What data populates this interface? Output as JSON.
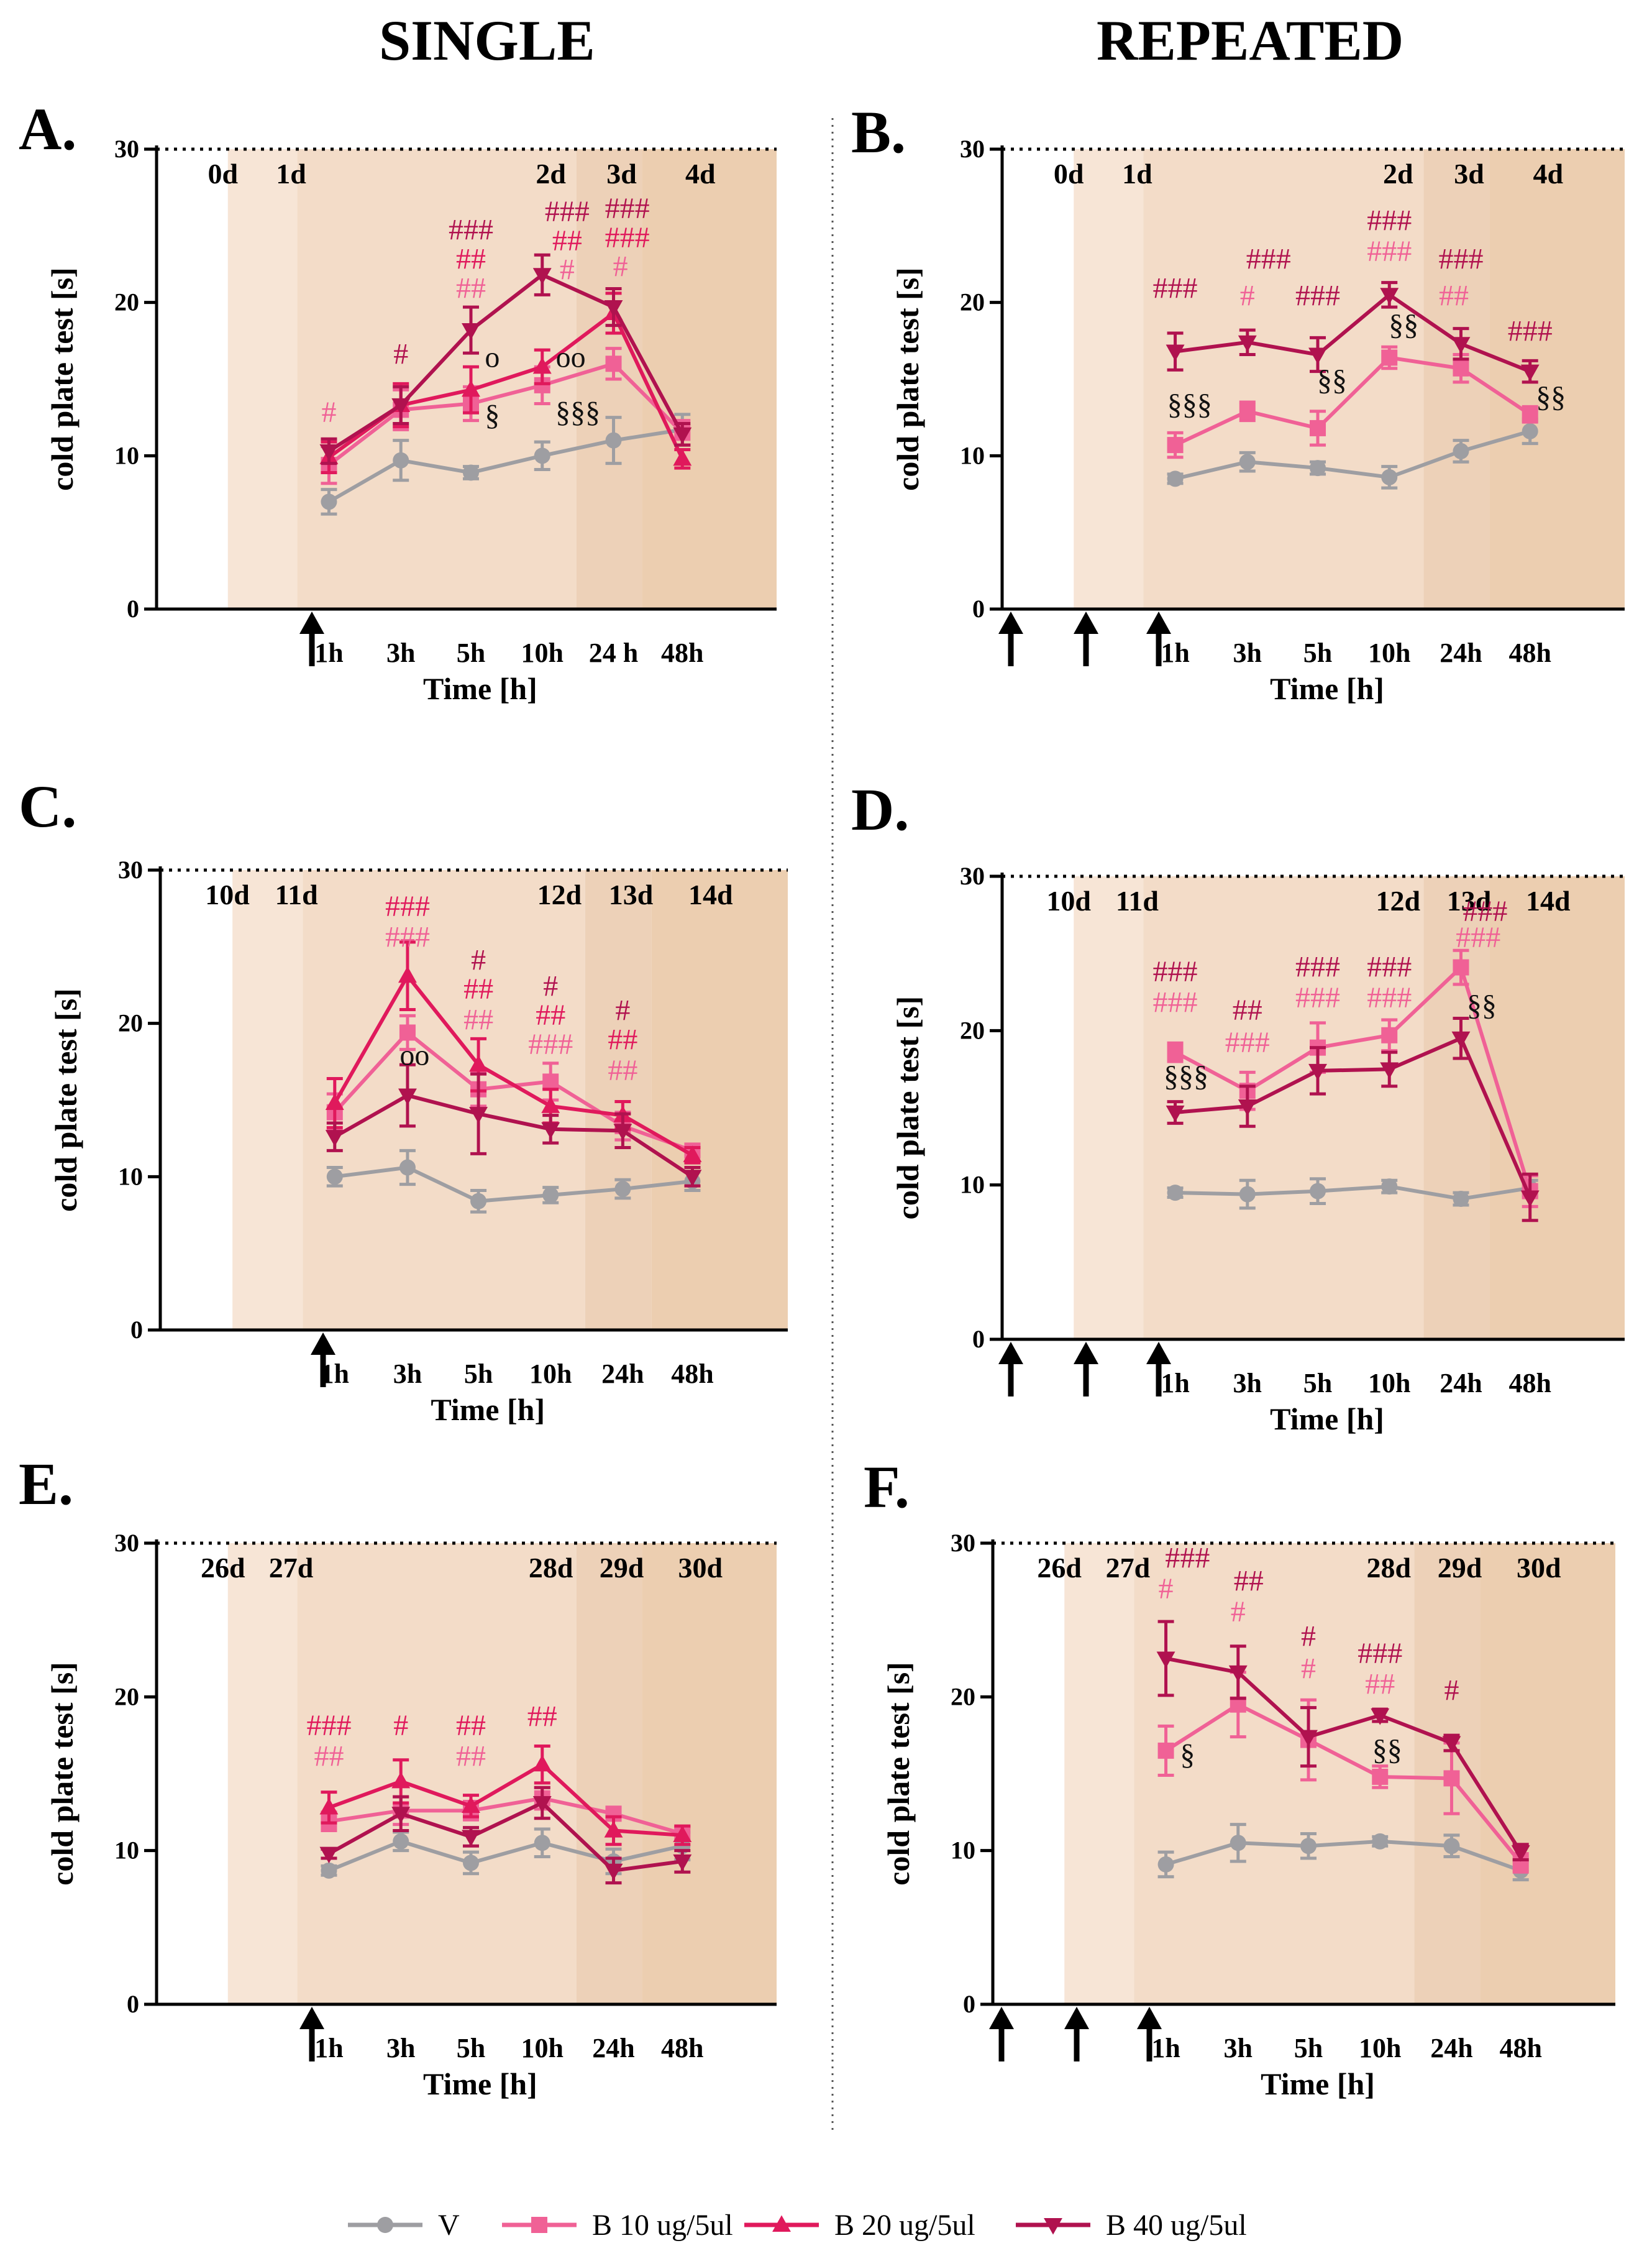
{
  "column_titles": {
    "left": "SINGLE",
    "right": "REPEATED"
  },
  "series_styles": [
    {
      "name": "V",
      "color": "#9e9ea2",
      "marker": "circle"
    },
    {
      "name": "B 10 ug/5ul",
      "color": "#f06196",
      "marker": "square"
    },
    {
      "name": "B 20 ug/5ul",
      "color": "#e0195c",
      "marker": "triangle-up"
    },
    {
      "name": "B 40 ug/5ul",
      "color": "#b0124f",
      "marker": "triangle-down"
    }
  ],
  "colors": {
    "label_b10": "#f06196",
    "label_b20": "#e0195c",
    "label_b40": "#b0124f",
    "label_sig": "#111111"
  },
  "legend": [
    "V",
    "B 10 ug/5ul",
    "B 20 ug/5ul",
    "B 40 ug/5ul"
  ],
  "chart_data": [
    {
      "panel": "A.",
      "type": "line",
      "protocol": "single",
      "ylabel": "cold plate test  [s]",
      "xlabel": "Time [h]",
      "ylim": [
        0,
        30
      ],
      "yticks": [
        0,
        10,
        20,
        30
      ],
      "categories": [
        "1h",
        "3h",
        "5h",
        "10h",
        "24 h",
        "48h"
      ],
      "day_labels": [
        "0d",
        "1d",
        "2d",
        "3d",
        "4d"
      ],
      "injection_arrows": 1,
      "series": [
        {
          "name": "V",
          "values": [
            7,
            9.7,
            8.9,
            10,
            11,
            11.7
          ],
          "err": [
            0.8,
            1.3,
            0.4,
            0.9,
            1.5,
            1
          ]
        },
        {
          "name": "B 10 ug/5ul",
          "values": [
            9.4,
            13,
            13.4,
            14.6,
            16,
            11.5
          ],
          "err": [
            1.2,
            1.3,
            1.1,
            1.2,
            1,
            0.8
          ]
        },
        {
          "name": "B 20 ug/5ul",
          "values": [
            9.9,
            13.3,
            14.3,
            15.8,
            19.3,
            9.8
          ],
          "err": [
            1,
            1.4,
            1.5,
            1.1,
            1.3,
            0.6
          ]
        },
        {
          "name": "B 40 ug/5ul",
          "values": [
            10.3,
            13.3,
            18.2,
            21.8,
            19.7,
            11.4
          ],
          "err": [
            0.8,
            1.2,
            1.5,
            1.3,
            1.2,
            0.7
          ]
        }
      ],
      "annotations": [
        {
          "cat": 0,
          "y": 12.2,
          "text": "#",
          "color": "b10"
        },
        {
          "cat": 1,
          "y": 16,
          "text": "#",
          "color": "b40"
        },
        {
          "cat": 2,
          "y": 20.3,
          "text": "##",
          "color": "b10"
        },
        {
          "cat": 2,
          "y": 22.2,
          "text": "##",
          "color": "b20"
        },
        {
          "cat": 2,
          "y": 24.1,
          "text": "###",
          "color": "b40"
        },
        {
          "cat": 2.3,
          "y": 15.8,
          "text": "o",
          "color": "sig"
        },
        {
          "cat": 2.3,
          "y": 12,
          "text": "§",
          "color": "sig"
        },
        {
          "cat": 3.35,
          "y": 21.5,
          "text": "#",
          "color": "b10"
        },
        {
          "cat": 3.35,
          "y": 23.4,
          "text": "##",
          "color": "b20"
        },
        {
          "cat": 3.35,
          "y": 25.3,
          "text": "###",
          "color": "b40"
        },
        {
          "cat": 3.4,
          "y": 15.8,
          "text": "oo",
          "color": "sig"
        },
        {
          "cat": 3.5,
          "y": 12.2,
          "text": "§§§",
          "color": "sig"
        },
        {
          "cat": 4.1,
          "y": 21.7,
          "text": "#",
          "color": "b10"
        },
        {
          "cat": 4.2,
          "y": 23.6,
          "text": "###",
          "color": "b20"
        },
        {
          "cat": 4.2,
          "y": 25.5,
          "text": "###",
          "color": "b40"
        }
      ]
    },
    {
      "panel": "B.",
      "type": "line",
      "protocol": "repeated",
      "ylabel": "cold plate test  [s]",
      "xlabel": "Time [h]",
      "ylim": [
        0,
        30
      ],
      "yticks": [
        0,
        10,
        20,
        30
      ],
      "categories": [
        "1h",
        "3h",
        "5h",
        "10h",
        "24h",
        "48h"
      ],
      "day_labels": [
        "0d",
        "1d",
        "2d",
        "3d",
        "4d"
      ],
      "injection_arrows": 3,
      "series": [
        {
          "name": "V",
          "values": [
            8.5,
            9.6,
            9.2,
            8.6,
            10.3,
            11.6
          ],
          "err": [
            0.3,
            0.6,
            0.4,
            0.7,
            0.7,
            0.8
          ]
        },
        {
          "name": "B 10 ug/5ul",
          "values": [
            10.7,
            12.9,
            11.8,
            16.4,
            15.7,
            12.7
          ],
          "err": [
            0.8,
            0.6,
            1.1,
            0.7,
            0.9,
            0.5
          ]
        },
        {
          "name": "B 40 ug/5ul",
          "values": [
            16.8,
            17.4,
            16.6,
            20.5,
            17.3,
            15.5
          ],
          "err": [
            1.2,
            0.8,
            1.1,
            0.8,
            1,
            0.7
          ]
        }
      ],
      "annotations": [
        {
          "cat": 0,
          "y": 20.3,
          "text": "###",
          "color": "b40"
        },
        {
          "cat": 0.2,
          "y": 12.7,
          "text": "§§§",
          "color": "sig"
        },
        {
          "cat": 1,
          "y": 19.8,
          "text": "#",
          "color": "b10"
        },
        {
          "cat": 1.3,
          "y": 22.2,
          "text": "###",
          "color": "b40"
        },
        {
          "cat": 2,
          "y": 19.8,
          "text": "###",
          "color": "b40"
        },
        {
          "cat": 2.2,
          "y": 14.3,
          "text": "§§",
          "color": "sig"
        },
        {
          "cat": 3,
          "y": 22.7,
          "text": "###",
          "color": "b10"
        },
        {
          "cat": 3,
          "y": 24.7,
          "text": "###",
          "color": "b40"
        },
        {
          "cat": 3.2,
          "y": 17.9,
          "text": "§§",
          "color": "sig"
        },
        {
          "cat": 3.9,
          "y": 19.8,
          "text": "##",
          "color": "b10"
        },
        {
          "cat": 4,
          "y": 22.2,
          "text": "###",
          "color": "b40"
        },
        {
          "cat": 5,
          "y": 17.5,
          "text": "###",
          "color": "b40"
        },
        {
          "cat": 5.3,
          "y": 13.2,
          "text": "§§",
          "color": "sig"
        }
      ]
    },
    {
      "panel": "C.",
      "type": "line",
      "protocol": "single",
      "ylabel": "cold plate test  [s]",
      "xlabel": "Time [h]",
      "ylim": [
        0,
        30
      ],
      "yticks": [
        0,
        10,
        20,
        30
      ],
      "categories": [
        "1h",
        "3h",
        "5h",
        "10h",
        "24h",
        "48h"
      ],
      "day_labels": [
        "10d",
        "11d",
        "12d",
        "13d",
        "14d"
      ],
      "injection_arrows": 1,
      "series": [
        {
          "name": "V",
          "values": [
            10,
            10.6,
            8.4,
            8.8,
            9.2,
            9.7
          ],
          "err": [
            0.6,
            1.1,
            0.7,
            0.5,
            0.6,
            0.6
          ]
        },
        {
          "name": "B 10 ug/5ul",
          "values": [
            14.2,
            19.4,
            15.7,
            16.2,
            13.3,
            11.7
          ],
          "err": [
            1.2,
            1.1,
            1.1,
            1.2,
            0.9,
            0.4
          ]
        },
        {
          "name": "B 20 ug/5ul",
          "values": [
            14.8,
            23.1,
            17.3,
            14.6,
            14,
            11.4
          ],
          "err": [
            1.6,
            2.2,
            1.7,
            1.1,
            0.9,
            0.5
          ]
        },
        {
          "name": "B 40 ug/5ul",
          "values": [
            12.6,
            15.3,
            14.1,
            13.1,
            13,
            10
          ],
          "err": [
            0.9,
            2,
            2.6,
            0.9,
            1.1,
            0.6
          ]
        }
      ],
      "annotations": [
        {
          "cat": 1,
          "y": 25,
          "text": "###",
          "color": "b10"
        },
        {
          "cat": 1,
          "y": 27,
          "text": "###",
          "color": "b20"
        },
        {
          "cat": 1.1,
          "y": 17.3,
          "text": "oo",
          "color": "sig"
        },
        {
          "cat": 2,
          "y": 19.6,
          "text": "##",
          "color": "b10"
        },
        {
          "cat": 2,
          "y": 21.6,
          "text": "##",
          "color": "b20"
        },
        {
          "cat": 2,
          "y": 23.5,
          "text": "#",
          "color": "b40"
        },
        {
          "cat": 3,
          "y": 18,
          "text": "###",
          "color": "b10"
        },
        {
          "cat": 3,
          "y": 19.9,
          "text": "##",
          "color": "b20"
        },
        {
          "cat": 3,
          "y": 21.8,
          "text": "#",
          "color": "b40"
        },
        {
          "cat": 4,
          "y": 16.3,
          "text": "##",
          "color": "b10"
        },
        {
          "cat": 4,
          "y": 18.3,
          "text": "##",
          "color": "b20"
        },
        {
          "cat": 4,
          "y": 20.2,
          "text": "#",
          "color": "b40"
        }
      ]
    },
    {
      "panel": "D.",
      "type": "line",
      "protocol": "repeated",
      "ylabel": "cold plate test  [s]",
      "xlabel": "Time [h]",
      "ylim": [
        0,
        30
      ],
      "yticks": [
        0,
        10,
        20,
        30
      ],
      "categories": [
        "1h",
        "3h",
        "5h",
        "10h",
        "24h",
        "48h"
      ],
      "day_labels": [
        "10d",
        "11d",
        "12d",
        "13d",
        "14d"
      ],
      "injection_arrows": 3,
      "series": [
        {
          "name": "V",
          "values": [
            9.5,
            9.4,
            9.6,
            9.9,
            9.1,
            9.8
          ],
          "err": [
            0.3,
            0.9,
            0.8,
            0.4,
            0.4,
            0.5
          ]
        },
        {
          "name": "B 10 ug/5ul",
          "values": [
            18.6,
            16.1,
            18.9,
            19.7,
            24.1,
            9.6
          ],
          "err": [
            0.6,
            1.2,
            1.6,
            1,
            1.1,
            1
          ]
        },
        {
          "name": "B 40 ug/5ul",
          "values": [
            14.7,
            15.1,
            17.4,
            17.5,
            19.5,
            9.2
          ],
          "err": [
            0.7,
            1.3,
            1.5,
            1.1,
            1.3,
            1.5
          ]
        }
      ],
      "annotations": [
        {
          "cat": 0,
          "y": 21.2,
          "text": "###",
          "color": "b10"
        },
        {
          "cat": 0,
          "y": 23.2,
          "text": "###",
          "color": "b40"
        },
        {
          "cat": 0.15,
          "y": 16.4,
          "text": "§§§",
          "color": "sig"
        },
        {
          "cat": 1,
          "y": 18.6,
          "text": "###",
          "color": "b10"
        },
        {
          "cat": 1,
          "y": 20.7,
          "text": "##",
          "color": "b40"
        },
        {
          "cat": 2,
          "y": 21.5,
          "text": "###",
          "color": "b10"
        },
        {
          "cat": 2,
          "y": 23.5,
          "text": "###",
          "color": "b40"
        },
        {
          "cat": 3,
          "y": 21.5,
          "text": "###",
          "color": "b10"
        },
        {
          "cat": 3,
          "y": 23.5,
          "text": "###",
          "color": "b40"
        },
        {
          "cat": 4.25,
          "y": 25.4,
          "text": "###",
          "color": "b10"
        },
        {
          "cat": 4.35,
          "y": 27.1,
          "text": "###",
          "color": "b40"
        },
        {
          "cat": 4.3,
          "y": 21,
          "text": "§§",
          "color": "sig"
        }
      ]
    },
    {
      "panel": "E.",
      "type": "line",
      "protocol": "single",
      "ylabel": "cold plate test  [s]",
      "xlabel": "Time [h]",
      "ylim": [
        0,
        30
      ],
      "yticks": [
        0,
        10,
        20,
        30
      ],
      "categories": [
        "1h",
        "3h",
        "5h",
        "10h",
        "24h",
        "48h"
      ],
      "day_labels": [
        "26d",
        "27d",
        "28d",
        "29d",
        "30d"
      ],
      "injection_arrows": 1,
      "series": [
        {
          "name": "V",
          "values": [
            8.7,
            10.6,
            9.2,
            10.5,
            9.3,
            10.3
          ],
          "err": [
            0.3,
            0.6,
            0.7,
            0.9,
            0.8,
            0.9
          ]
        },
        {
          "name": "B 10 ug/5ul",
          "values": [
            11.9,
            12.6,
            12.6,
            13.4,
            12.4,
            11.1
          ],
          "err": [
            0.6,
            0.9,
            0.6,
            0.7,
            0.4,
            0.4
          ]
        },
        {
          "name": "B 20 ug/5ul",
          "values": [
            12.8,
            14.5,
            12.9,
            15.6,
            11.3,
            11
          ],
          "err": [
            1,
            1.4,
            0.7,
            1.2,
            0.9,
            0.6
          ]
        },
        {
          "name": "B 40 ug/5ul",
          "values": [
            9.8,
            12.4,
            10.9,
            13.1,
            8.7,
            9.3
          ],
          "err": [
            0.3,
            1.1,
            0.6,
            1,
            0.8,
            0.7
          ]
        }
      ],
      "annotations": [
        {
          "cat": 0,
          "y": 15.5,
          "text": "##",
          "color": "b10"
        },
        {
          "cat": 0,
          "y": 17.5,
          "text": "###",
          "color": "b20"
        },
        {
          "cat": 1,
          "y": 17.5,
          "text": "#",
          "color": "b20"
        },
        {
          "cat": 2,
          "y": 15.5,
          "text": "##",
          "color": "b10"
        },
        {
          "cat": 2,
          "y": 17.5,
          "text": "##",
          "color": "b20"
        },
        {
          "cat": 3,
          "y": 18.1,
          "text": "##",
          "color": "b20"
        }
      ]
    },
    {
      "panel": "F.",
      "type": "line",
      "protocol": "repeated",
      "ylabel": "cold plate test  [s]",
      "xlabel": "Time [h]",
      "ylim": [
        0,
        30
      ],
      "yticks": [
        0,
        10,
        20,
        30
      ],
      "categories": [
        "1h",
        "3h",
        "5h",
        "10h",
        "24h",
        "48h"
      ],
      "day_labels": [
        "26d",
        "27d",
        "28d",
        "29d",
        "30d"
      ],
      "injection_arrows": 3,
      "series": [
        {
          "name": "V",
          "values": [
            9.1,
            10.5,
            10.3,
            10.6,
            10.3,
            8.7
          ],
          "err": [
            0.8,
            1.2,
            0.8,
            0.3,
            0.7,
            0.6
          ]
        },
        {
          "name": "B 10 ug/5ul",
          "values": [
            16.5,
            19.5,
            17.2,
            14.8,
            14.7,
            9.2
          ],
          "err": [
            1.6,
            2.1,
            2.6,
            0.7,
            2.3,
            0.6
          ]
        },
        {
          "name": "B 40 ug/5ul",
          "values": [
            22.5,
            21.6,
            17.4,
            18.8,
            17,
            9.9
          ],
          "err": [
            2.4,
            1.7,
            1.9,
            0.4,
            0.5,
            0.5
          ]
        }
      ],
      "annotations": [
        {
          "cat": 0,
          "y": 26.4,
          "text": "#",
          "color": "b10"
        },
        {
          "cat": 0.3,
          "y": 28.4,
          "text": "###",
          "color": "b40"
        },
        {
          "cat": 0.3,
          "y": 15.6,
          "text": "§",
          "color": "sig"
        },
        {
          "cat": 1,
          "y": 24.9,
          "text": "#",
          "color": "b10"
        },
        {
          "cat": 1.15,
          "y": 26.9,
          "text": "##",
          "color": "b40"
        },
        {
          "cat": 2,
          "y": 21.2,
          "text": "#",
          "color": "b10"
        },
        {
          "cat": 2,
          "y": 23.3,
          "text": "#",
          "color": "b40"
        },
        {
          "cat": 3,
          "y": 20.2,
          "text": "##",
          "color": "b10"
        },
        {
          "cat": 3,
          "y": 22.2,
          "text": "###",
          "color": "b40"
        },
        {
          "cat": 3.1,
          "y": 15.9,
          "text": "§§",
          "color": "sig"
        },
        {
          "cat": 4,
          "y": 19.8,
          "text": "#",
          "color": "b40"
        }
      ]
    }
  ]
}
